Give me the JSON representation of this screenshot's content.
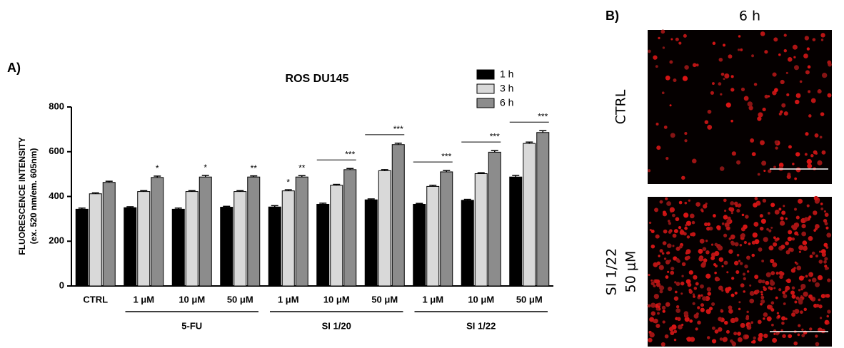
{
  "chart_data": {
    "type": "bar",
    "panel_label": "A)",
    "title": "ROS DU145",
    "y_label": [
      "FLUORESCENCE INTENSITY",
      "(ex. 520 nm/em. 605nm)"
    ],
    "categories": [
      "CTRL",
      "1 μM",
      "10 μM",
      "50 μM",
      "1 μM",
      "10 μM",
      "50 μM",
      "1 μM",
      "10 μM",
      "50 μM"
    ],
    "groups": [
      {
        "label": "5-FU",
        "start": 1,
        "end": 3
      },
      {
        "label": "SI 1/20",
        "start": 4,
        "end": 6
      },
      {
        "label": "SI 1/22",
        "start": 7,
        "end": 9
      }
    ],
    "series": [
      {
        "name": "1 h",
        "color": "#000000",
        "values": [
          343,
          350,
          343,
          352,
          353,
          365,
          385,
          365,
          383,
          487
        ],
        "errors": [
          5,
          4,
          5,
          4,
          6,
          5,
          4,
          4,
          4,
          7
        ]
      },
      {
        "name": "3 h",
        "color": "#d9d9d9",
        "values": [
          412,
          422,
          422,
          422,
          425,
          450,
          515,
          445,
          502,
          637
        ],
        "errors": [
          4,
          4,
          4,
          4,
          5,
          4,
          5,
          5,
          4,
          6
        ]
      },
      {
        "name": "6 h",
        "color": "#8c8c8c",
        "values": [
          463,
          485,
          487,
          487,
          487,
          520,
          632,
          510,
          598,
          686
        ],
        "errors": [
          5,
          6,
          7,
          5,
          6,
          5,
          6,
          6,
          7,
          8
        ]
      }
    ],
    "annotations": [
      {
        "category": 1,
        "series": 2,
        "text": "*"
      },
      {
        "category": 2,
        "series": 2,
        "text": "*"
      },
      {
        "category": 3,
        "series": 2,
        "text": "**"
      },
      {
        "category": 4,
        "series": 1,
        "text": "*"
      },
      {
        "category": 4,
        "series": 2,
        "text": "**"
      },
      {
        "category": 5,
        "series": 2,
        "text": "***",
        "bracket": true
      },
      {
        "category": 6,
        "series": 2,
        "text": "***",
        "bracket": true
      },
      {
        "category": 7,
        "series": 2,
        "text": "***",
        "bracket": true
      },
      {
        "category": 8,
        "series": 2,
        "text": "***",
        "bracket": true
      },
      {
        "category": 9,
        "series": 2,
        "text": "***",
        "bracket": true
      }
    ],
    "ylim": [
      0,
      800
    ],
    "yticks": [
      0,
      200,
      400,
      600,
      800
    ],
    "grid": false,
    "legend": "top-right"
  },
  "panel_b": {
    "label": "B)",
    "title": "6 h",
    "rows": [
      {
        "label": [
          "CTRL"
        ]
      },
      {
        "label": [
          "SI 1/22",
          "50 μM"
        ]
      }
    ]
  }
}
